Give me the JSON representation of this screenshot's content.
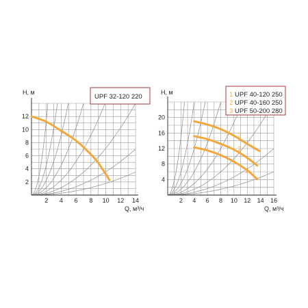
{
  "colors": {
    "curve": "#f4a73b",
    "grid": "#9a9a9a",
    "system_curve": "#8c8c8c",
    "frame": "#a03a3a",
    "axis": "#222222"
  },
  "chart_data": [
    {
      "type": "line",
      "title": "UPF 32-120 220",
      "ylabel": "H, м",
      "xlabel": "Q, м³/ч",
      "xlim": [
        0,
        14
      ],
      "ylim": [
        0,
        14
      ],
      "x_ticks": [
        "2",
        "4",
        "6",
        "8",
        "10",
        "12",
        "14"
      ],
      "y_ticks": [
        "2",
        "4",
        "6",
        "8",
        "10",
        "12"
      ],
      "grid": true,
      "legend": "top-right boxed",
      "series": [
        {
          "marker": "",
          "x": [
            0,
            2,
            4,
            6,
            8,
            9,
            10.5
          ],
          "y": [
            12.0,
            11.2,
            9.8,
            8.3,
            6.2,
            4.9,
            2.3
          ]
        }
      ]
    },
    {
      "type": "line",
      "ylabel": "H, м",
      "xlabel": "Q, м³/ч",
      "xlim": [
        0,
        16
      ],
      "ylim": [
        0,
        24
      ],
      "x_ticks": [
        "2",
        "4",
        "6",
        "8",
        "10",
        "12",
        "14",
        "16"
      ],
      "y_ticks": [
        "4",
        "8",
        "12",
        "16",
        "20"
      ],
      "grid": true,
      "legend": "top-right boxed",
      "series": [
        {
          "name": "UPF 40-120 250",
          "marker": "1",
          "x": [
            4,
            6,
            8,
            10,
            12,
            13.5
          ],
          "y": [
            12.3,
            11.5,
            10.3,
            8.6,
            6.4,
            4.1
          ]
        },
        {
          "name": "UPF 40-160 250",
          "marker": "2",
          "x": [
            4,
            6,
            8,
            10,
            12,
            13.5
          ],
          "y": [
            15.2,
            14.4,
            13.2,
            11.7,
            9.6,
            7.6
          ]
        },
        {
          "name": "UPF 50-200 280",
          "marker": "3",
          "x": [
            4,
            6,
            8,
            10,
            12,
            13.8
          ],
          "y": [
            19.0,
            18.2,
            17.0,
            15.3,
            13.2,
            11.4
          ]
        }
      ]
    }
  ]
}
